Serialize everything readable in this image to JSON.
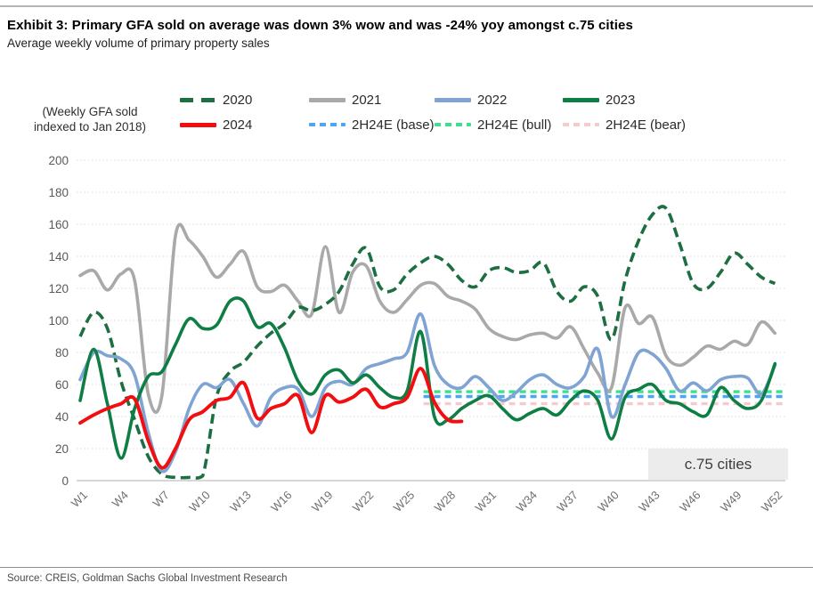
{
  "header": {
    "title": "Exhibit 3: Primary GFA sold on average was down 3% wow and was -24% yoy amongst c.75 cities",
    "subtitle": "Average weekly volume of primary property sales"
  },
  "axis_note": {
    "line1": "(Weekly GFA sold",
    "line2": "indexed to Jan 2018)"
  },
  "legend": {
    "rows": [
      [
        {
          "label": "2020",
          "color": "#1d6f42",
          "style": "dash-long"
        },
        {
          "label": "2021",
          "color": "#a9a9a9",
          "style": "solid"
        },
        {
          "label": "2022",
          "color": "#7fa3d3",
          "style": "solid"
        },
        {
          "label": "2023",
          "color": "#0e7e44",
          "style": "solid"
        }
      ],
      [
        {
          "label": "2024",
          "color": "#f20d11",
          "style": "solid"
        },
        {
          "label": "2H24E (base)",
          "color": "#4ba5f8",
          "style": "dash-short"
        },
        {
          "label": "2H24E (bull)",
          "color": "#3ee08d",
          "style": "dash-short"
        },
        {
          "label": "2H24E (bear)",
          "color": "#f6caca",
          "style": "dash-short"
        }
      ]
    ]
  },
  "chart": {
    "annotation": "c.75 cities"
  },
  "chart_data": {
    "type": "line",
    "title": "Average weekly volume of primary property sales",
    "ylabel": "(Weekly GFA sold indexed to Jan 2018)",
    "ylim": [
      0,
      200
    ],
    "y_tick_step": 20,
    "grid": "dotted-horizontal",
    "legend_position": "top",
    "x_tick_labels": [
      "W1",
      "W4",
      "W7",
      "W10",
      "W13",
      "W16",
      "W19",
      "W22",
      "W25",
      "W28",
      "W31",
      "W34",
      "W37",
      "W40",
      "W43",
      "W46",
      "W49",
      "W52"
    ],
    "x_tick_weeks": [
      1,
      4,
      7,
      10,
      13,
      16,
      19,
      22,
      25,
      28,
      31,
      34,
      37,
      40,
      43,
      46,
      49,
      52
    ],
    "weeks": 52,
    "series": [
      {
        "name": "2H24E (bear)",
        "color": "#f6caca",
        "dash": "7 5",
        "width": 3.4,
        "z": 1,
        "hline": 48,
        "from_week": 26.2,
        "to_week": 52.6
      },
      {
        "name": "2H24E (base)",
        "color": "#4ba5f8",
        "dash": "7 5",
        "width": 3.4,
        "z": 2,
        "hline": 52.5,
        "from_week": 26.2,
        "to_week": 52.6
      },
      {
        "name": "2H24E (bull)",
        "color": "#3ee08d",
        "dash": "7 5",
        "width": 3.4,
        "z": 3,
        "hline": 55.5,
        "from_week": 26.2,
        "to_week": 52.6
      },
      {
        "name": "2021",
        "color": "#a9a9a9",
        "dash": null,
        "width": 3.6,
        "z": 4,
        "start_week": 1,
        "values": [
          128,
          131,
          119,
          129,
          125,
          54,
          53,
          153,
          150,
          140,
          127,
          135,
          143,
          121,
          118,
          122,
          112,
          104,
          146,
          105,
          130,
          134,
          112,
          105,
          113,
          122,
          123,
          115,
          112,
          107,
          95,
          90,
          88,
          91,
          92,
          89,
          96,
          82,
          67,
          58,
          108,
          98,
          102,
          78,
          72,
          77,
          84,
          82,
          87,
          85,
          99,
          92
        ]
      },
      {
        "name": "2020",
        "color": "#1d6f42",
        "dash": "11 6",
        "width": 3.6,
        "z": 5,
        "start_week": 1,
        "values": [
          90,
          105,
          95,
          62,
          38,
          15,
          4,
          2,
          2,
          3,
          52,
          68,
          74,
          84,
          92,
          98,
          108,
          106,
          110,
          118,
          135,
          145,
          121,
          119,
          129,
          136,
          140,
          135,
          125,
          121,
          131,
          133,
          130,
          131,
          136,
          118,
          112,
          121,
          115,
          88,
          125,
          150,
          166,
          170,
          148,
          123,
          120,
          130,
          142,
          135,
          127,
          123
        ]
      },
      {
        "name": "2022",
        "color": "#7fa3d3",
        "dash": null,
        "width": 3.6,
        "z": 6,
        "start_week": 1,
        "values": [
          63,
          80,
          78,
          76,
          66,
          30,
          6,
          18,
          45,
          60,
          58,
          63,
          48,
          34,
          52,
          58,
          57,
          40,
          58,
          62,
          60,
          70,
          73,
          76,
          80,
          104,
          72,
          60,
          58,
          65,
          58,
          50,
          55,
          63,
          66,
          60,
          58,
          65,
          82,
          40,
          60,
          80,
          79,
          70,
          56,
          61,
          56,
          63,
          65,
          64,
          54,
          72
        ]
      },
      {
        "name": "2023",
        "color": "#0e7e44",
        "dash": null,
        "width": 3.6,
        "z": 7,
        "start_week": 1,
        "values": [
          50,
          82,
          48,
          14,
          45,
          65,
          68,
          85,
          101,
          95,
          97,
          112,
          112,
          96,
          98,
          83,
          62,
          54,
          66,
          69,
          61,
          66,
          58,
          52,
          56,
          93,
          40,
          38,
          45,
          50,
          53,
          45,
          38,
          42,
          45,
          41,
          50,
          56,
          50,
          26,
          52,
          57,
          60,
          50,
          48,
          43,
          41,
          58,
          50,
          45,
          50,
          73
        ]
      },
      {
        "name": "2024",
        "color": "#f20d11",
        "dash": null,
        "width": 3.9,
        "z": 8,
        "start_week": 1,
        "values": [
          36,
          41,
          45,
          48,
          51,
          25,
          8,
          20,
          38,
          43,
          50,
          52,
          61,
          39,
          45,
          48,
          53,
          30,
          53,
          49,
          52,
          57,
          46,
          48,
          52,
          70,
          49,
          38,
          37
        ]
      }
    ],
    "annotation": "c.75 cities"
  },
  "footer": {
    "source": "Source: CREIS, Goldman Sachs Global Investment Research"
  }
}
